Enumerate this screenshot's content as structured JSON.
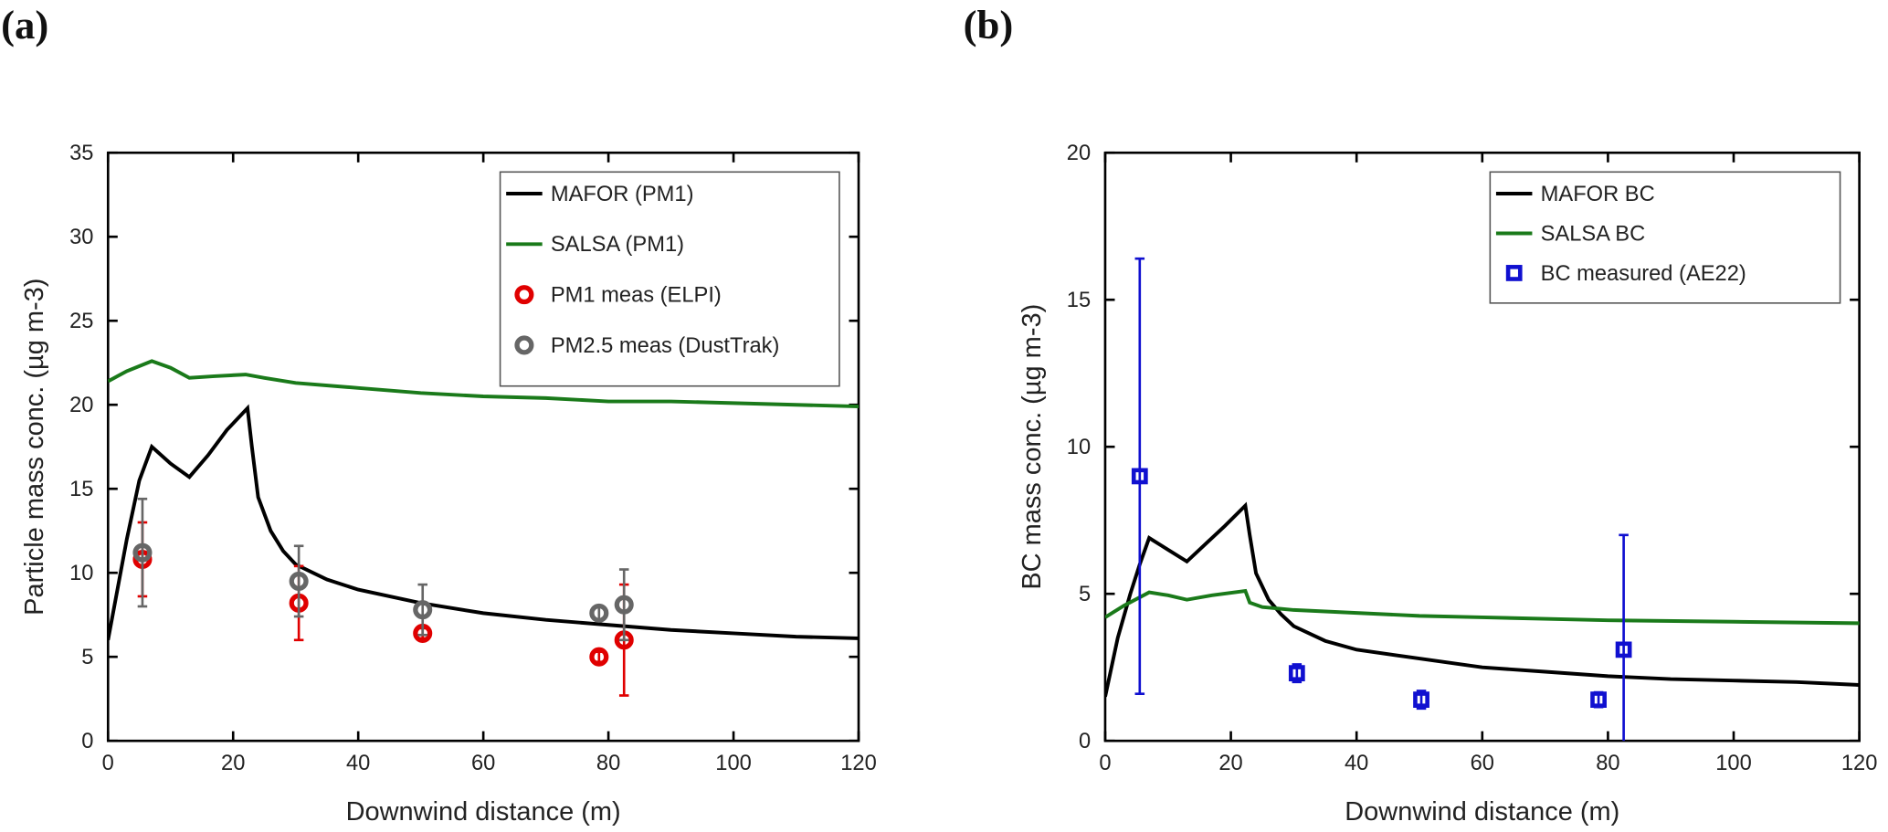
{
  "chart_data": [
    {
      "type": "line",
      "panel": "(a)",
      "xlabel": "Downwind distance (m)",
      "ylabel": "Particle mass conc. (µg m-3)",
      "xlim": [
        0,
        120
      ],
      "ylim": [
        0,
        35
      ],
      "xticks": [
        0,
        20,
        40,
        60,
        80,
        100,
        120
      ],
      "yticks": [
        0,
        5,
        10,
        15,
        20,
        25,
        30,
        35
      ],
      "legend": "upper right",
      "series": [
        {
          "name": "MAFOR (PM1)",
          "kind": "line",
          "color": "#000000",
          "x": [
            0,
            1,
            3,
            5,
            7,
            10,
            13,
            16,
            19,
            22.3,
            23,
            24,
            26,
            28,
            30,
            35,
            40,
            50,
            60,
            70,
            80,
            90,
            100,
            110,
            120
          ],
          "values": [
            6,
            8,
            12,
            15.5,
            17.5,
            16.5,
            15.7,
            17,
            18.5,
            19.8,
            17.5,
            14.5,
            12.5,
            11.3,
            10.5,
            9.6,
            9,
            8.2,
            7.6,
            7.2,
            6.9,
            6.6,
            6.4,
            6.2,
            6.1
          ]
        },
        {
          "name": "SALSA (PM1)",
          "kind": "line",
          "color": "#1a7a1a",
          "x": [
            0,
            3,
            7,
            10,
            13,
            17,
            22,
            25,
            30,
            40,
            50,
            60,
            70,
            80,
            90,
            100,
            110,
            120
          ],
          "values": [
            21.4,
            22,
            22.6,
            22.2,
            21.6,
            21.7,
            21.8,
            21.6,
            21.3,
            21,
            20.7,
            20.5,
            20.4,
            20.2,
            20.2,
            20.1,
            20,
            19.9
          ]
        },
        {
          "name": "PM1 meas (ELPI)",
          "kind": "circle",
          "color": "#e00000",
          "x": [
            5.5,
            30.5,
            50.3,
            78.5,
            82.5
          ],
          "values": [
            10.8,
            8.2,
            6.4,
            5.0,
            6.0
          ],
          "errors": [
            2.2,
            2.2,
            0.3,
            0.3,
            3.3
          ]
        },
        {
          "name": "PM2.5 meas (DustTrak)",
          "kind": "circle",
          "color": "#666666",
          "x": [
            5.5,
            30.5,
            50.3,
            78.5,
            82.5
          ],
          "values": [
            11.2,
            9.5,
            7.8,
            7.6,
            8.1
          ],
          "errors": [
            3.2,
            2.1,
            1.5,
            0.4,
            2.1
          ]
        }
      ]
    },
    {
      "type": "line",
      "panel": "(b)",
      "xlabel": "Downwind distance (m)",
      "ylabel": "BC mass conc. (µg m-3)",
      "xlim": [
        0,
        120
      ],
      "ylim": [
        0,
        20
      ],
      "xticks": [
        0,
        20,
        40,
        60,
        80,
        100,
        120
      ],
      "yticks": [
        0,
        5,
        10,
        15,
        20
      ],
      "legend": "upper right",
      "series": [
        {
          "name": "MAFOR BC",
          "kind": "line",
          "color": "#000000",
          "x": [
            0,
            2,
            4,
            5.5,
            7,
            10,
            13,
            16,
            19,
            22.3,
            23,
            24,
            26,
            28,
            30,
            35,
            40,
            50,
            60,
            70,
            80,
            90,
            100,
            110,
            120
          ],
          "values": [
            1.5,
            3.5,
            5,
            6,
            6.9,
            6.5,
            6.1,
            6.7,
            7.3,
            8,
            7,
            5.7,
            4.8,
            4.3,
            3.9,
            3.4,
            3.1,
            2.8,
            2.5,
            2.35,
            2.2,
            2.1,
            2.05,
            2,
            1.9
          ]
        },
        {
          "name": "SALSA BC",
          "kind": "line",
          "color": "#1a7a1a",
          "x": [
            0,
            3,
            7,
            10,
            13,
            17,
            22.3,
            23,
            25,
            30,
            40,
            50,
            60,
            80,
            100,
            120
          ],
          "values": [
            4.2,
            4.6,
            5.05,
            4.95,
            4.8,
            4.95,
            5.1,
            4.7,
            4.55,
            4.45,
            4.35,
            4.25,
            4.2,
            4.1,
            4.05,
            4.0
          ]
        },
        {
          "name": "BC measured (AE22)",
          "kind": "square",
          "color": "#1010d0",
          "x": [
            5.5,
            30.5,
            50.3,
            78.5,
            82.5
          ],
          "values": [
            9,
            2.3,
            1.4,
            1.4,
            3.1
          ],
          "errors": [
            7.4,
            0.3,
            0.3,
            0.25,
            3.9
          ]
        }
      ]
    }
  ]
}
